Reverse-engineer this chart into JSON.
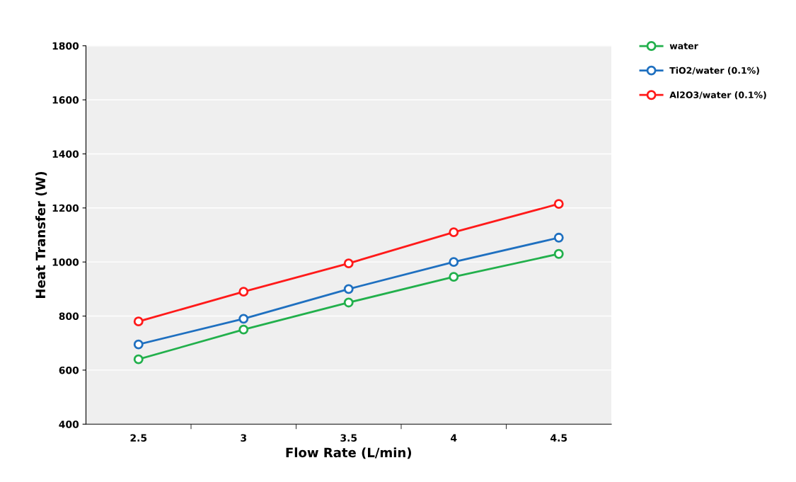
{
  "chart_data": {
    "type": "line",
    "xlabel": "Flow Rate (L/min)",
    "ylabel": "Heat Transfer (W)",
    "categories": [
      "2.5",
      "3",
      "3.5",
      "4",
      "4.5"
    ],
    "series": [
      {
        "name": "water",
        "color": "#22b04c",
        "values": [
          640,
          750,
          850,
          945,
          1030
        ]
      },
      {
        "name": "TiO2/water (0.1%)",
        "color": "#1f70c0",
        "values": [
          695,
          790,
          900,
          1000,
          1090
        ]
      },
      {
        "name": "Al2O3/water (0.1%)",
        "color": "#ff1a1a",
        "values": [
          780,
          890,
          995,
          1110,
          1215
        ]
      }
    ],
    "ylim": [
      400,
      1800
    ],
    "yticks": [
      400,
      600,
      800,
      1000,
      1200,
      1400,
      1600,
      1800
    ],
    "grid": "y",
    "legend": "top right",
    "marker": "circle",
    "line_style": "solid"
  }
}
